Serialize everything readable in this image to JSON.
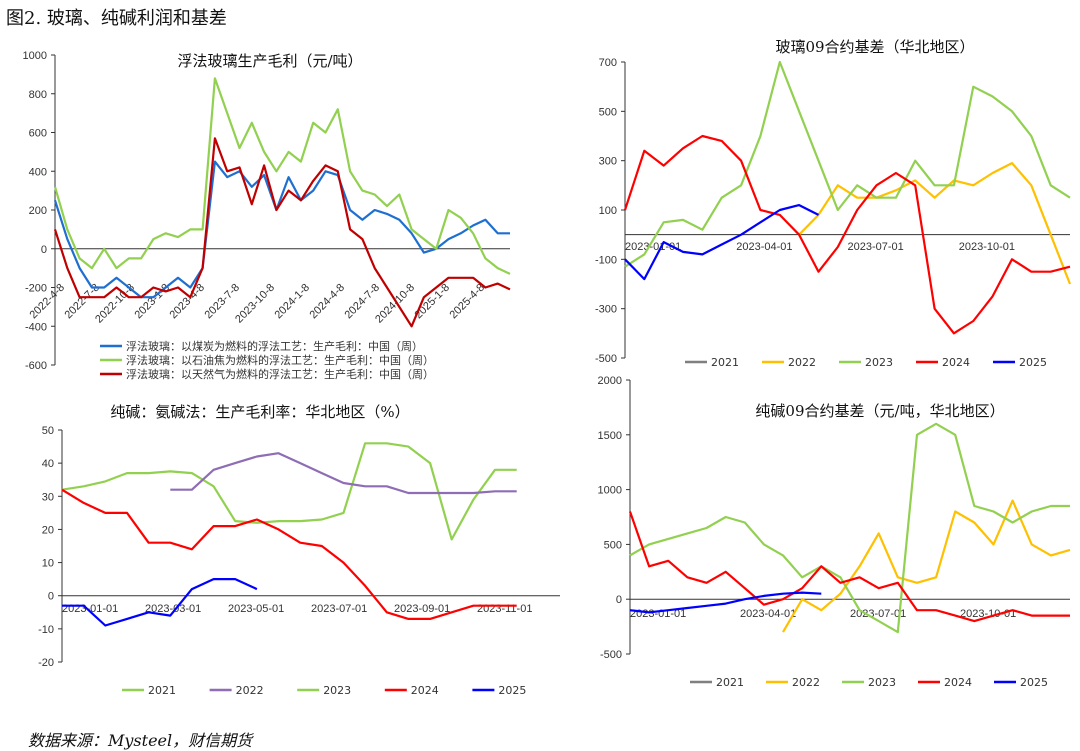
{
  "figure_title": "图2.  玻璃、纯碱利润和基差",
  "source": "数据来源：Mysteel，财信期货",
  "colors": {
    "s2021": "#7f7f7f",
    "s2022": "#ffc000",
    "s2023": "#92d050",
    "s2024": "#ff0000",
    "s2025": "#0000ff",
    "coal": "#1f6fd1",
    "oil": "#92d050",
    "gas": "#c00000",
    "ammonia2021": "#92d050",
    "ammonia2022": "#8e6db5",
    "ammonia2023": "#92d050"
  },
  "chart_data": [
    {
      "id": "glass_profit",
      "type": "line",
      "title": "浮法玻璃生产毛利（元/吨）",
      "ylim": [
        -600,
        1000
      ],
      "yticks": [
        "1000",
        "800",
        "600",
        "400",
        "200",
        "0",
        "-200",
        "-400",
        "-600"
      ],
      "xticks": [
        "2022-4-8",
        "2022-7-8",
        "2022-10-8",
        "2023-1-8",
        "2023-4-8",
        "2023-7-8",
        "2023-10-8",
        "2024-1-8",
        "2024-4-8",
        "2024-7-8",
        "2024-10-8",
        "2025-1-8",
        "2025-4-8"
      ],
      "x_count": 38,
      "series": [
        {
          "name": "浮法玻璃：以煤炭为燃料的浮法工艺：生产毛利：中国（周）",
          "color_key": "coal",
          "values": [
            250,
            50,
            -100,
            -200,
            -200,
            -150,
            -200,
            -250,
            -250,
            -200,
            -150,
            -200,
            -100,
            450,
            370,
            400,
            320,
            380,
            200,
            370,
            250,
            300,
            400,
            380,
            200,
            150,
            200,
            180,
            150,
            80,
            -20,
            0,
            50,
            80,
            120,
            150,
            80,
            80
          ]
        },
        {
          "name": "浮法玻璃：以石油焦为燃料的浮法工艺：生产毛利：中国（周）",
          "color_key": "oil",
          "values": [
            320,
            100,
            -50,
            -100,
            0,
            -100,
            -50,
            -50,
            50,
            80,
            60,
            100,
            100,
            880,
            700,
            520,
            650,
            500,
            400,
            500,
            450,
            650,
            600,
            720,
            400,
            300,
            280,
            220,
            280,
            100,
            50,
            0,
            200,
            160,
            80,
            -50,
            -100,
            -130
          ]
        },
        {
          "name": "浮法玻璃：以天然气为燃料的浮法工艺：生产毛利：中国（周）",
          "color_key": "gas",
          "values": [
            100,
            -100,
            -250,
            -250,
            -250,
            -200,
            -250,
            -250,
            -200,
            -220,
            -200,
            -250,
            -100,
            570,
            400,
            420,
            230,
            430,
            200,
            300,
            250,
            350,
            430,
            400,
            100,
            50,
            -100,
            -200,
            -300,
            -400,
            -250,
            -200,
            -150,
            -150,
            -150,
            -200,
            -180,
            -210
          ]
        }
      ]
    },
    {
      "id": "glass_basis",
      "type": "line",
      "title": "玻璃09合约基差（华北地区）",
      "ylim": [
        -500,
        700
      ],
      "yticks": [
        "700",
        "500",
        "300",
        "100",
        "-100",
        "-300",
        "-500"
      ],
      "xticks": [
        "2023-01-01",
        "2023-04-01",
        "2023-07-01",
        "2023-10-01"
      ],
      "x_count": 24,
      "legend": [
        "2021",
        "2022",
        "2023",
        "2024",
        "2025"
      ],
      "series": [
        {
          "name": "2022",
          "color_key": "s2022",
          "values": [
            null,
            null,
            null,
            null,
            null,
            null,
            null,
            null,
            null,
            0,
            80,
            200,
            150,
            150,
            180,
            220,
            150,
            220,
            200,
            250,
            290,
            200,
            0,
            -200
          ]
        },
        {
          "name": "2023",
          "color_key": "s2023",
          "values": [
            -130,
            -80,
            50,
            60,
            20,
            150,
            200,
            400,
            700,
            500,
            300,
            100,
            200,
            150,
            150,
            300,
            200,
            200,
            600,
            560,
            500,
            400,
            200,
            150
          ]
        },
        {
          "name": "2024",
          "color_key": "s2024",
          "values": [
            100,
            340,
            280,
            350,
            400,
            380,
            300,
            100,
            80,
            0,
            -150,
            -50,
            100,
            200,
            250,
            200,
            -300,
            -400,
            -350,
            -250,
            -100,
            -150,
            -150,
            -130
          ]
        },
        {
          "name": "2025",
          "color_key": "s2025",
          "values": [
            -100,
            -180,
            -30,
            -70,
            -80,
            -40,
            0,
            50,
            100,
            120,
            80,
            null,
            null,
            null,
            null,
            null,
            null,
            null,
            null,
            null,
            null,
            null,
            null,
            null
          ]
        }
      ]
    },
    {
      "id": "soda_margin",
      "type": "line",
      "title": "纯碱：氨碱法：生产毛利率：华北地区（%）",
      "ylim": [
        -20,
        50
      ],
      "yticks": [
        "50",
        "40",
        "30",
        "20",
        "10",
        "0",
        "-10",
        "-20"
      ],
      "xticks": [
        "2023-01-01",
        "2023-03-01",
        "2023-05-01",
        "2023-07-01",
        "2023-09-01",
        "2023-11-01"
      ],
      "x_count": 24,
      "legend": [
        "2021",
        "2022",
        "2023",
        "2024",
        "2025"
      ],
      "series": [
        {
          "name": "2021",
          "color_key": "ammonia2021",
          "values": [
            32,
            33,
            34.5,
            37,
            37,
            37.5,
            37,
            33,
            22.5,
            22,
            22.5,
            22.5,
            23,
            25,
            46,
            46,
            45,
            40,
            17,
            29,
            38,
            38,
            null,
            null
          ]
        },
        {
          "name": "2022",
          "color_key": "ammonia2022",
          "values": [
            null,
            null,
            null,
            null,
            null,
            32,
            32,
            38,
            40,
            42,
            43,
            40,
            37,
            34,
            33,
            33,
            31,
            31,
            31,
            31,
            31.5,
            31.5,
            null,
            null
          ]
        },
        {
          "name": "2024",
          "color_key": "s2024",
          "values": [
            32,
            28,
            25,
            25,
            16,
            16,
            14,
            21,
            21,
            23,
            20,
            16,
            15,
            10,
            3,
            -5,
            -7,
            -7,
            -5,
            -3,
            -3,
            -3,
            null,
            null
          ]
        },
        {
          "name": "2025",
          "color_key": "s2025",
          "values": [
            -3,
            -3,
            -9,
            -7,
            -5,
            -6,
            2,
            5,
            5,
            2,
            null,
            null,
            null,
            null,
            null,
            null,
            null,
            null,
            null,
            null,
            null,
            null,
            null,
            null
          ]
        }
      ]
    },
    {
      "id": "soda_basis",
      "type": "line",
      "title": "纯碱09合约基差（元/吨，华北地区）",
      "ylim": [
        -500,
        2000
      ],
      "yticks": [
        "2000",
        "1500",
        "1000",
        "500",
        "0",
        "-500"
      ],
      "xticks": [
        "2023-01-01",
        "2023-04-01",
        "2023-07-01",
        "2023-10-01"
      ],
      "x_count": 24,
      "legend": [
        "2021",
        "2022",
        "2023",
        "2024",
        "2025"
      ],
      "series": [
        {
          "name": "2022",
          "color_key": "s2022",
          "values": [
            null,
            null,
            null,
            null,
            null,
            null,
            null,
            null,
            -300,
            0,
            -100,
            50,
            300,
            600,
            200,
            150,
            200,
            800,
            700,
            500,
            900,
            500,
            400,
            450
          ]
        },
        {
          "name": "2023",
          "color_key": "s2023",
          "values": [
            400,
            500,
            550,
            600,
            650,
            750,
            700,
            500,
            400,
            200,
            300,
            200,
            -100,
            -200,
            -300,
            1500,
            1600,
            1500,
            850,
            800,
            700,
            800,
            850,
            850
          ]
        },
        {
          "name": "2024",
          "color_key": "s2024",
          "values": [
            800,
            300,
            350,
            200,
            150,
            250,
            100,
            -50,
            0,
            100,
            300,
            150,
            200,
            100,
            150,
            -100,
            -100,
            -150,
            -200,
            -150,
            -100,
            -150,
            -150,
            -150
          ]
        },
        {
          "name": "2025",
          "color_key": "s2025",
          "values": [
            -100,
            -120,
            -100,
            -80,
            -60,
            -40,
            0,
            30,
            50,
            60,
            50,
            null,
            null,
            null,
            null,
            null,
            null,
            null,
            null,
            null,
            null,
            null,
            null,
            null
          ]
        }
      ]
    }
  ]
}
